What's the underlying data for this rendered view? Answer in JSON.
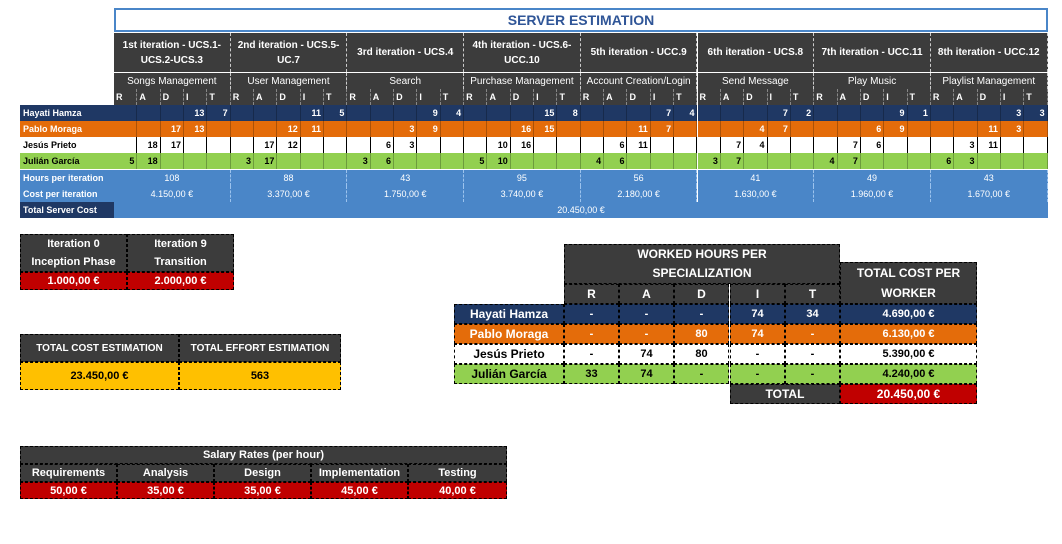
{
  "title": "SERVER ESTIMATION",
  "iterations": [
    {
      "name": "1st iteration - UCS.1-UCS.2-UCS.3",
      "feature": "Songs Management",
      "rows": [
        [
          "",
          "",
          "",
          "13",
          "7"
        ],
        [
          "",
          "",
          "17",
          "13",
          ""
        ],
        [
          "",
          "18",
          "17",
          "",
          ""
        ],
        [
          "5",
          "18",
          "",
          "",
          ""
        ]
      ],
      "hours": "108",
      "cost": "4.150,00 €"
    },
    {
      "name": "2nd iteration - UCS.5-UC.7",
      "feature": "User Management",
      "rows": [
        [
          "",
          "",
          "",
          "11",
          "5"
        ],
        [
          "",
          "",
          "12",
          "11",
          ""
        ],
        [
          "",
          "17",
          "12",
          "",
          ""
        ],
        [
          "3",
          "17",
          "",
          "",
          ""
        ]
      ],
      "hours": "88",
      "cost": "3.370,00 €"
    },
    {
      "name": "3rd iteration - UCS.4",
      "feature": "Search",
      "rows": [
        [
          "",
          "",
          "",
          "9",
          "4"
        ],
        [
          "",
          "",
          "3",
          "9",
          ""
        ],
        [
          "",
          "6",
          "3",
          "",
          ""
        ],
        [
          "3",
          "6",
          "",
          "",
          ""
        ]
      ],
      "hours": "43",
      "cost": "1.750,00 €"
    },
    {
      "name": "4th iteration - UCS.6-UCC.10",
      "feature": "Purchase Management",
      "rows": [
        [
          "",
          "",
          "",
          "15",
          "8"
        ],
        [
          "",
          "",
          "16",
          "15",
          ""
        ],
        [
          "",
          "10",
          "16",
          "",
          ""
        ],
        [
          "5",
          "10",
          "",
          "",
          ""
        ]
      ],
      "hours": "95",
      "cost": "3.740,00 €"
    },
    {
      "name": "5th iteration - UCC.9",
      "feature": "Account Creation/Login",
      "rows": [
        [
          "",
          "",
          "",
          "7",
          "4"
        ],
        [
          "",
          "",
          "11",
          "7",
          ""
        ],
        [
          "",
          "6",
          "11",
          "",
          ""
        ],
        [
          "4",
          "6",
          "",
          "",
          ""
        ]
      ],
      "hours": "56",
      "cost": "2.180,00 €"
    },
    {
      "name": "6th iteration - UCS.8",
      "feature": "Send Message",
      "rows": [
        [
          "",
          "",
          "",
          "7",
          "2"
        ],
        [
          "",
          "",
          "4",
          "7",
          ""
        ],
        [
          "",
          "7",
          "4",
          "",
          ""
        ],
        [
          "3",
          "7",
          "",
          "",
          ""
        ]
      ],
      "hours": "41",
      "cost": "1.630,00 €"
    },
    {
      "name": "7th iteration - UCC.11",
      "feature": "Play Music",
      "rows": [
        [
          "",
          "",
          "",
          "9",
          "1"
        ],
        [
          "",
          "",
          "6",
          "9",
          ""
        ],
        [
          "",
          "7",
          "6",
          "",
          ""
        ],
        [
          "4",
          "7",
          "",
          "",
          ""
        ]
      ],
      "hours": "49",
      "cost": "1.960,00 €"
    },
    {
      "name": "8th iteration - UCC.12",
      "feature": "Playlist Management",
      "rows": [
        [
          "",
          "",
          "",
          "3",
          "3"
        ],
        [
          "",
          "",
          "11",
          "3",
          ""
        ],
        [
          "",
          "3",
          "11",
          "",
          ""
        ],
        [
          "6",
          "3",
          "",
          "",
          ""
        ]
      ],
      "hours": "43",
      "cost": "1.670,00 €"
    }
  ],
  "role_letters": [
    "R",
    "A",
    "D",
    "I",
    "T"
  ],
  "workers": [
    "Hayati Hamza",
    "Pablo Moraga",
    "Jesús Prieto",
    "Julián García"
  ],
  "hours_label": "Hours per iteration",
  "cost_label": "Cost per iteration",
  "total_label": "Total Server Cost",
  "total_value": "20.450,00 €",
  "phases": {
    "iter0_line1": "Iteration 0",
    "iter0_line2": "Inception Phase",
    "iter0_value": "1.000,00 €",
    "iter9_line1": "Iteration 9",
    "iter9_line2": "Transition",
    "iter9_value": "2.000,00 €"
  },
  "estimation": {
    "cost_label": "TOTAL COST ESTIMATION",
    "effort_label": "TOTAL EFFORT ESTIMATION",
    "cost_value": "23.450,00 €",
    "effort_value": "563"
  },
  "salary": {
    "title": "Salary Rates (per hour)",
    "headers": [
      "Requirements",
      "Analysis",
      "Design",
      "Implementation",
      "Testing"
    ],
    "values": [
      "50,00 €",
      "35,00 €",
      "35,00 €",
      "45,00 €",
      "40,00 €"
    ]
  },
  "worked": {
    "title_line1": "WORKED HOURS PER",
    "title_line2": "SPECIALIZATION",
    "cost_title_line1": "TOTAL COST PER",
    "cost_title_line2": "WORKER",
    "cols": [
      "R",
      "A",
      "D",
      "I",
      "T"
    ],
    "rows": [
      {
        "name": "Hayati Hamza",
        "vals": [
          "-",
          "-",
          "-",
          "74",
          "34"
        ],
        "cost": "4.690,00 €"
      },
      {
        "name": "Pablo Moraga",
        "vals": [
          "-",
          "-",
          "80",
          "74",
          "-"
        ],
        "cost": "6.130,00 €"
      },
      {
        "name": "Jesús Prieto",
        "vals": [
          "-",
          "74",
          "80",
          "-",
          "-"
        ],
        "cost": "5.390,00 €"
      },
      {
        "name": "Julián García",
        "vals": [
          "33",
          "74",
          "-",
          "-",
          "-"
        ],
        "cost": "4.240,00 €"
      }
    ],
    "total_label": "TOTAL",
    "total_value": "20.450,00 €"
  },
  "colors": {
    "dark": "#3c3c3c",
    "navy": "#1f3864",
    "orange": "#e46c0a",
    "green": "#92d050",
    "light_blue": "#4a86c8",
    "red": "#c00000",
    "gold": "#ffc000",
    "title_blue": "#2f5597"
  }
}
